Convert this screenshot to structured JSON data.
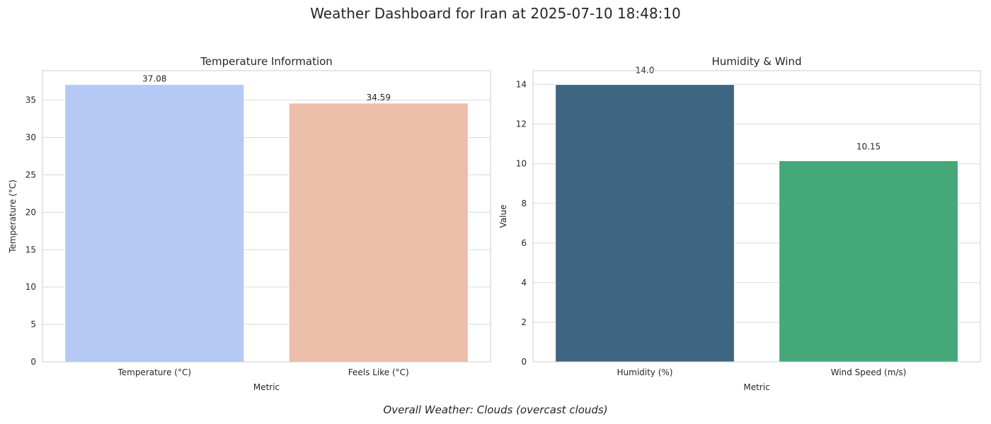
{
  "suptitle": "Weather Dashboard for Iran at 2025-07-10 18:48:10",
  "footnote": "Overall Weather: Clouds (overcast clouds)",
  "chart_data": [
    {
      "type": "bar",
      "title": "Temperature Information",
      "xlabel": "Metric",
      "ylabel": "Temperature (°C)",
      "categories": [
        "Temperature (°C)",
        "Feels Like (°C)"
      ],
      "values": [
        37.08,
        34.59
      ],
      "value_labels": [
        "37.08",
        "34.59"
      ],
      "colors": [
        "#b4c9f4",
        "#ecbda8"
      ],
      "ylim": [
        0,
        38.93
      ],
      "yticks": [
        0,
        5,
        10,
        15,
        20,
        25,
        30,
        35
      ],
      "ytick_labels": [
        "0",
        "5",
        "10",
        "15",
        "20",
        "25",
        "30",
        "35"
      ],
      "grid": "horizontal"
    },
    {
      "type": "bar",
      "title": "Humidity & Wind",
      "xlabel": "Metric",
      "ylabel": "Value",
      "categories": [
        "Humidity (%)",
        "Wind Speed (m/s)"
      ],
      "values": [
        14.0,
        10.15
      ],
      "value_labels": [
        "14.0",
        "10.15"
      ],
      "colors": [
        "#3e6682",
        "#44a878"
      ],
      "ylim": [
        0,
        14.7
      ],
      "yticks": [
        0,
        2,
        4,
        6,
        8,
        10,
        12,
        14
      ],
      "ytick_labels": [
        "0",
        "2",
        "4",
        "6",
        "8",
        "10",
        "12",
        "14"
      ],
      "grid": "horizontal"
    }
  ]
}
